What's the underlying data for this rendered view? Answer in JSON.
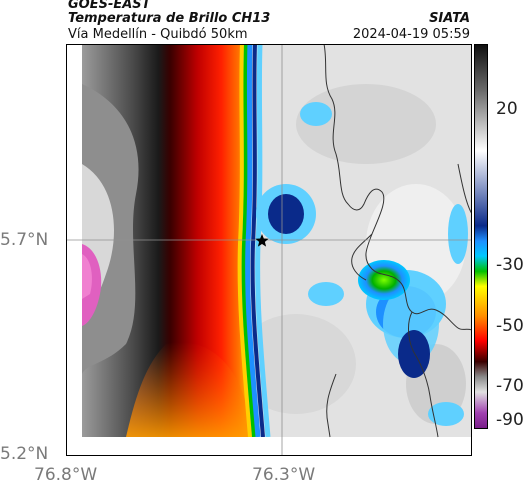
{
  "header": {
    "satellite": "GOES-EAST",
    "product": "Temperatura de Brillo CH13",
    "route": "Vía Medellín - Quibdó 50km",
    "source": "SIATA",
    "datetime": "2024-04-19 05:59"
  },
  "axes": {
    "y_ticks": [
      "5.7°N",
      "5.2°N"
    ],
    "x_ticks": [
      "76.8°W",
      "76.3°W"
    ]
  },
  "colorbar": {
    "labels": [
      "20",
      "-30",
      "-50",
      "-70",
      "-90"
    ],
    "gradient_stops": [
      {
        "value": 35,
        "color": "#101010"
      },
      {
        "value": 20,
        "color": "#6a6a6a"
      },
      {
        "value": 0,
        "color": "#ffffff"
      },
      {
        "value": -25,
        "color": "#0a2a8a"
      },
      {
        "value": -30,
        "color": "#1e90ff"
      },
      {
        "value": -35,
        "color": "#00c8ff"
      },
      {
        "value": -40,
        "color": "#00c000"
      },
      {
        "value": -45,
        "color": "#ffff00"
      },
      {
        "value": -55,
        "color": "#ff8c00"
      },
      {
        "value": -63,
        "color": "#ff0000"
      },
      {
        "value": -70,
        "color": "#3a0000"
      },
      {
        "value": -75,
        "color": "#888888"
      },
      {
        "value": -80,
        "color": "#e0e0e0"
      },
      {
        "value": -87,
        "color": "#a040b0"
      },
      {
        "value": -92,
        "color": "#7a1f8a"
      }
    ]
  },
  "map": {
    "marker": "star-icon"
  }
}
